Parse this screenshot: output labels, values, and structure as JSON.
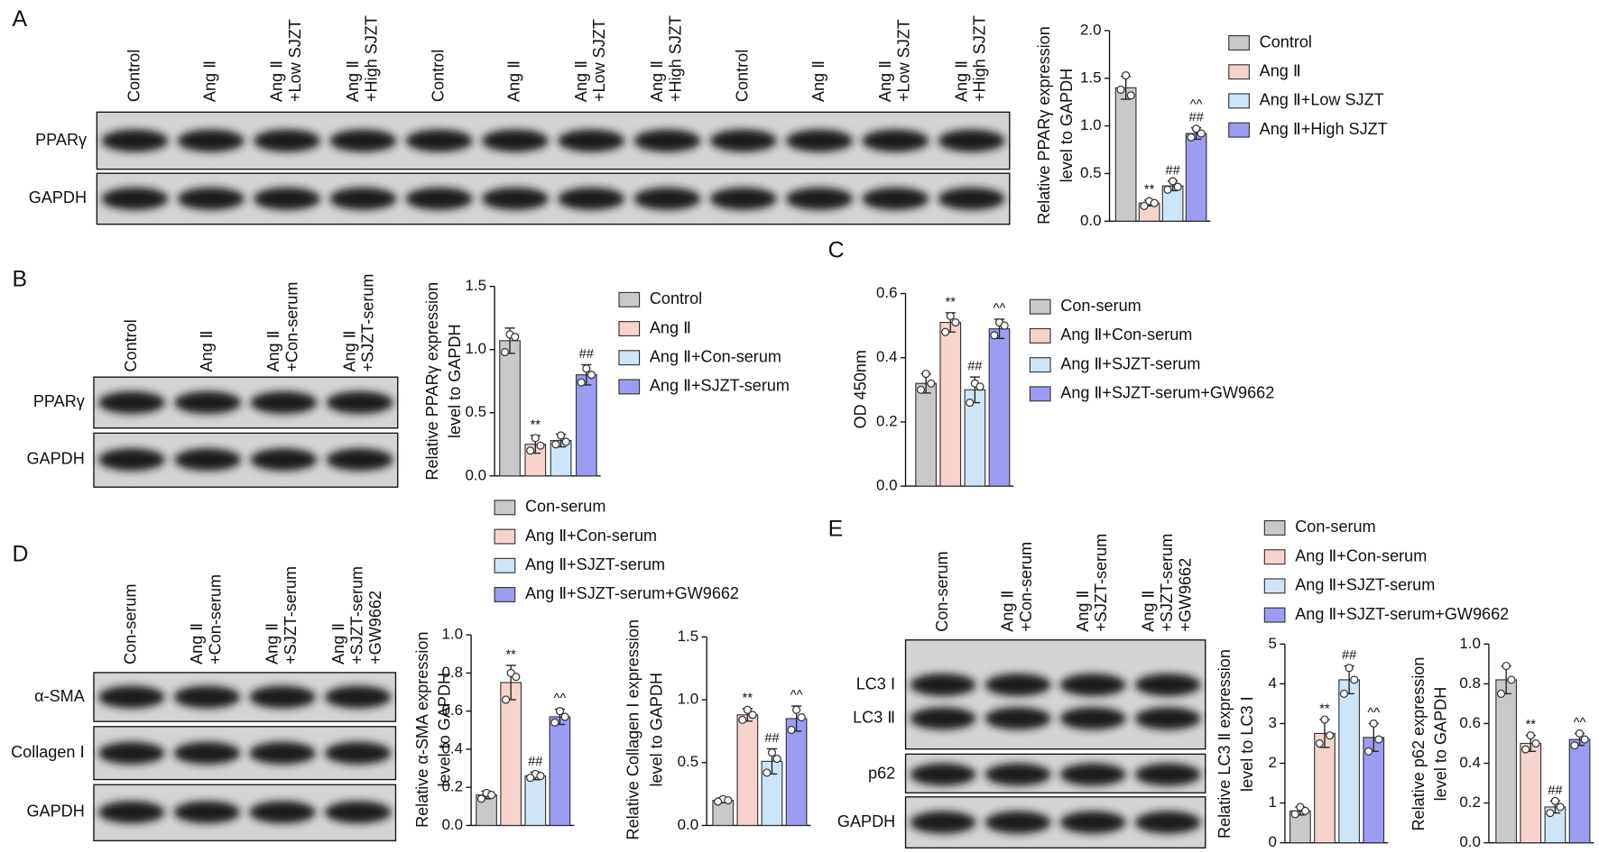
{
  "panel_letters": [
    "A",
    "B",
    "C",
    "D",
    "E"
  ],
  "blots": [
    {
      "lanes": [
        [
          "Control"
        ],
        [
          "Ang Ⅱ"
        ],
        [
          "Ang Ⅱ",
          "+Low SJZT"
        ],
        [
          "Ang Ⅱ",
          "+High SJZT"
        ],
        [
          "Control"
        ],
        [
          "Ang Ⅱ"
        ],
        [
          "Ang Ⅱ",
          "+Low SJZT"
        ],
        [
          "Ang Ⅱ",
          "+High SJZT"
        ],
        [
          "Control"
        ],
        [
          "Ang Ⅱ"
        ],
        [
          "Ang Ⅱ",
          "+Low SJZT"
        ],
        [
          "Ang Ⅱ",
          "+High SJZT"
        ]
      ],
      "rows": [
        "PPARγ",
        "GAPDH"
      ]
    },
    {
      "lanes": [
        [
          "Control"
        ],
        [
          "Ang Ⅱ"
        ],
        [
          "Ang Ⅱ",
          "+Con-serum"
        ],
        [
          "Ang Ⅱ",
          "+SJZT-serum"
        ]
      ],
      "rows": [
        "PPARγ",
        "GAPDH"
      ]
    },
    {
      "lanes": [
        [
          "Con-serum"
        ],
        [
          "Ang Ⅱ",
          "+Con-serum"
        ],
        [
          "Ang Ⅱ",
          "+SJZT-serum"
        ],
        [
          "Ang Ⅱ",
          "+SJZT-serum",
          "+GW9662"
        ]
      ],
      "rows": [
        "α-SMA",
        "Collagen Ⅰ",
        "GAPDH"
      ]
    },
    {
      "lanes": [
        [
          "Con-serum"
        ],
        [
          "Ang Ⅱ",
          "+Con-serum"
        ],
        [
          "Ang Ⅱ",
          "+SJZT-serum"
        ],
        [
          "Ang Ⅱ",
          "+SJZT-serum",
          "+GW9662"
        ]
      ],
      "rows": [
        "LC3 Ⅰ",
        "LC3 Ⅱ",
        "p62",
        "GAPDH"
      ]
    }
  ],
  "chart_data": [
    {
      "type": "bar",
      "ylabel": [
        "Relative PPARγ expression",
        "level to GAPDH"
      ],
      "categories": [
        "Control",
        "Ang Ⅱ",
        "Ang Ⅱ+Low SJZT",
        "Ang Ⅱ+High SJZT"
      ],
      "colors": [
        "#c9c9c9",
        "#f8d3cd",
        "#cde5f6",
        "#9c9cf2"
      ],
      "values": [
        1.4,
        0.19,
        0.37,
        0.92
      ],
      "errors": [
        0.12,
        0.03,
        0.05,
        0.06
      ],
      "points": [
        [
          1.53,
          1.38,
          1.32
        ],
        [
          0.21,
          0.16,
          0.19
        ],
        [
          0.42,
          0.33,
          0.36
        ],
        [
          0.97,
          0.88,
          0.92
        ]
      ],
      "annotations": [
        null,
        [
          "**"
        ],
        [
          "##"
        ],
        [
          "^^",
          "##"
        ]
      ],
      "ylim": [
        0,
        2
      ],
      "yticks": [
        {
          "value": 0,
          "label": "0.0"
        },
        0.5,
        {
          "value": 1,
          "label": "1.0"
        },
        1.5,
        {
          "value": 2,
          "label": "2.0"
        }
      ]
    },
    {
      "type": "bar",
      "ylabel": [
        "Relative PPARγ expression",
        "level to GAPDH"
      ],
      "categories": [
        "Control",
        "Ang Ⅱ",
        "Ang Ⅱ+Con-serum",
        "Ang Ⅱ+SJZT-serum"
      ],
      "colors": [
        "#c9c9c9",
        "#f8d3cd",
        "#cde5f6",
        "#9c9cf2"
      ],
      "values": [
        1.07,
        0.25,
        0.28,
        0.8
      ],
      "errors": [
        0.1,
        0.07,
        0.05,
        0.08
      ],
      "points": [
        [
          1.12,
          0.98,
          1.1
        ],
        [
          0.3,
          0.2,
          0.24
        ],
        [
          0.32,
          0.25,
          0.27
        ],
        [
          0.85,
          0.74,
          0.8
        ]
      ],
      "annotations": [
        null,
        [
          "**"
        ],
        null,
        [
          "##"
        ]
      ],
      "ylim": [
        0,
        1.5
      ],
      "yticks": [
        {
          "value": 0,
          "label": "0.0"
        },
        0.5,
        {
          "value": 1,
          "label": "1.0"
        },
        1.5
      ]
    },
    {
      "type": "bar",
      "ylabel": [
        "OD 450nm"
      ],
      "categories": [
        "Con-serum",
        "Ang Ⅱ+Con-serum",
        "Ang Ⅱ+SJZT-serum",
        "Ang Ⅱ+SJZT-serum+GW9662"
      ],
      "colors": [
        "#c9c9c9",
        "#f8d3cd",
        "#cde5f6",
        "#9c9cf2"
      ],
      "values": [
        0.32,
        0.51,
        0.3,
        0.49
      ],
      "errors": [
        0.03,
        0.03,
        0.04,
        0.03
      ],
      "points": [
        [
          0.35,
          0.3,
          0.32
        ],
        [
          0.53,
          0.48,
          0.51
        ],
        [
          0.32,
          0.26,
          0.31
        ],
        [
          0.51,
          0.47,
          0.5
        ]
      ],
      "annotations": [
        null,
        [
          "**"
        ],
        [
          "##"
        ],
        [
          "^^"
        ]
      ],
      "ylim": [
        0,
        0.6
      ],
      "yticks": [
        {
          "value": 0,
          "label": "0.0"
        },
        0.2,
        0.4,
        0.6
      ]
    },
    {
      "type": "bar",
      "ylabel": [
        "Relative α-SMA expression",
        "level to GAPDH"
      ],
      "categories": [
        "Con-serum",
        "Ang Ⅱ+Con-serum",
        "Ang Ⅱ+SJZT-serum",
        "Ang Ⅱ+SJZT-serum+GW9662"
      ],
      "colors": [
        "#c9c9c9",
        "#f8d3cd",
        "#cde5f6",
        "#9c9cf2"
      ],
      "values": [
        0.16,
        0.75,
        0.26,
        0.57
      ],
      "errors": [
        0.02,
        0.09,
        0.02,
        0.04
      ],
      "points": [
        [
          0.17,
          0.14,
          0.16
        ],
        [
          0.8,
          0.66,
          0.78
        ],
        [
          0.27,
          0.25,
          0.26
        ],
        [
          0.6,
          0.54,
          0.57
        ]
      ],
      "annotations": [
        null,
        [
          "**"
        ],
        [
          "##"
        ],
        [
          "^^"
        ]
      ],
      "ylim": [
        0,
        1
      ],
      "yticks": [
        {
          "value": 0,
          "label": "0.0"
        },
        0.2,
        0.4,
        0.6,
        0.8,
        {
          "value": 1,
          "label": "1.0"
        }
      ]
    },
    {
      "type": "bar",
      "ylabel": [
        "Relative Collagen Ⅰ expression",
        "level to GAPDH"
      ],
      "colors": [
        "#c9c9c9",
        "#f8d3cd",
        "#cde5f6",
        "#9c9cf2"
      ],
      "values": [
        0.2,
        0.88,
        0.51,
        0.85
      ],
      "errors": [
        0.02,
        0.05,
        0.1,
        0.1
      ],
      "points": [
        [
          0.21,
          0.19,
          0.2
        ],
        [
          0.92,
          0.84,
          0.88
        ],
        [
          0.58,
          0.42,
          0.53
        ],
        [
          0.92,
          0.76,
          0.86
        ]
      ],
      "annotations": [
        null,
        [
          "**"
        ],
        [
          "##"
        ],
        [
          "^^"
        ]
      ],
      "ylim": [
        0,
        1.5
      ],
      "yticks": [
        {
          "value": 0,
          "label": "0.0"
        },
        0.5,
        {
          "value": 1,
          "label": "1.0"
        },
        1.5
      ]
    },
    {
      "type": "bar",
      "ylabel": [
        "Relative LC3 Ⅱ expression",
        "level to LC3 Ⅰ"
      ],
      "categories": [
        "Con-serum",
        "Ang Ⅱ+Con-serum",
        "Ang Ⅱ+SJZT-serum",
        "Ang Ⅱ+SJZT-serum+GW9662"
      ],
      "colors": [
        "#c9c9c9",
        "#f8d3cd",
        "#cde5f6",
        "#9c9cf2"
      ],
      "values": [
        0.8,
        2.75,
        4.1,
        2.65
      ],
      "errors": [
        0.1,
        0.35,
        0.35,
        0.35
      ],
      "points": [
        [
          0.9,
          0.72,
          0.8
        ],
        [
          3.1,
          2.5,
          2.7
        ],
        [
          4.4,
          3.75,
          4.1
        ],
        [
          3.0,
          2.3,
          2.6
        ]
      ],
      "annotations": [
        null,
        [
          "**"
        ],
        [
          "##"
        ],
        [
          "^^"
        ]
      ],
      "ylim": [
        0,
        5
      ],
      "yticks": [
        0,
        1,
        2,
        3,
        4,
        5
      ]
    },
    {
      "type": "bar",
      "ylabel": [
        "Relative p62 expression",
        "level to GAPDH"
      ],
      "colors": [
        "#c9c9c9",
        "#f8d3cd",
        "#cde5f6",
        "#9c9cf2"
      ],
      "values": [
        0.82,
        0.5,
        0.18,
        0.52
      ],
      "errors": [
        0.07,
        0.04,
        0.03,
        0.03
      ],
      "points": [
        [
          0.89,
          0.75,
          0.82
        ],
        [
          0.54,
          0.47,
          0.5
        ],
        [
          0.21,
          0.15,
          0.18
        ],
        [
          0.55,
          0.49,
          0.52
        ]
      ],
      "annotations": [
        null,
        [
          "**"
        ],
        [
          "##"
        ],
        [
          "^^"
        ]
      ],
      "ylim": [
        0,
        1
      ],
      "yticks": [
        {
          "value": 0,
          "label": "0.0"
        },
        0.2,
        0.4,
        0.6,
        0.8,
        {
          "value": 1,
          "label": "1.0"
        }
      ]
    }
  ]
}
